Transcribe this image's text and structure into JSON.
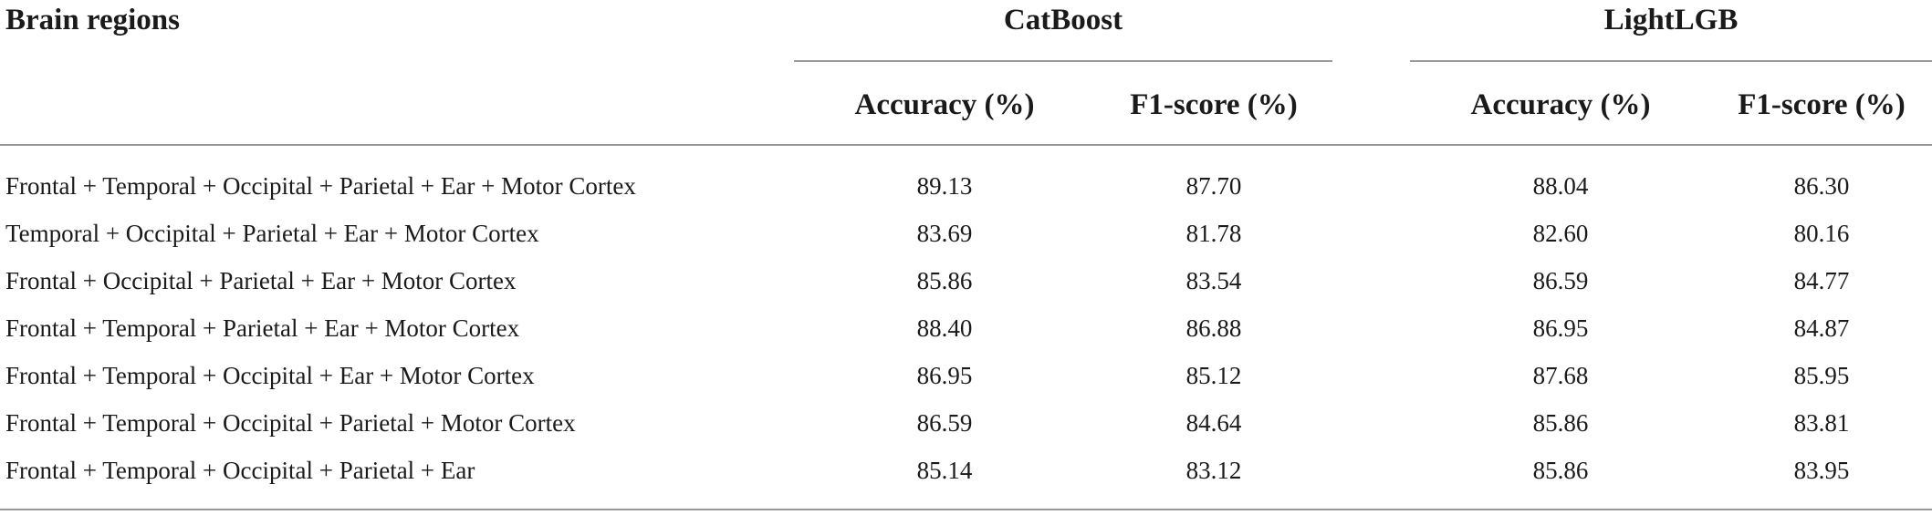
{
  "table": {
    "header": {
      "region_label": "Brain regions",
      "groups": [
        "CatBoost",
        "LightLGB"
      ],
      "subheaders": [
        "Accuracy (%)",
        "F1-score (%)",
        "Accuracy (%)",
        "F1-score (%)"
      ]
    },
    "rows": [
      {
        "region": "Frontal + Temporal + Occipital + Parietal + Ear + Motor Cortex",
        "values": [
          "89.13",
          "87.70",
          "88.04",
          "86.30"
        ]
      },
      {
        "region": "Temporal + Occipital + Parietal + Ear + Motor Cortex",
        "values": [
          "83.69",
          "81.78",
          "82.60",
          "80.16"
        ]
      },
      {
        "region": "Frontal + Occipital + Parietal + Ear + Motor Cortex",
        "values": [
          "85.86",
          "83.54",
          "86.59",
          "84.77"
        ]
      },
      {
        "region": "Frontal + Temporal + Parietal + Ear + Motor Cortex",
        "values": [
          "88.40",
          "86.88",
          "86.95",
          "84.87"
        ]
      },
      {
        "region": "Frontal + Temporal + Occipital + Ear + Motor Cortex",
        "values": [
          "86.95",
          "85.12",
          "87.68",
          "85.95"
        ]
      },
      {
        "region": "Frontal + Temporal + Occipital + Parietal + Motor Cortex",
        "values": [
          "86.59",
          "84.64",
          "85.86",
          "83.81"
        ]
      },
      {
        "region": "Frontal + Temporal + Occipital + Parietal + Ear",
        "values": [
          "85.14",
          "83.12",
          "85.86",
          "83.95"
        ]
      }
    ]
  }
}
